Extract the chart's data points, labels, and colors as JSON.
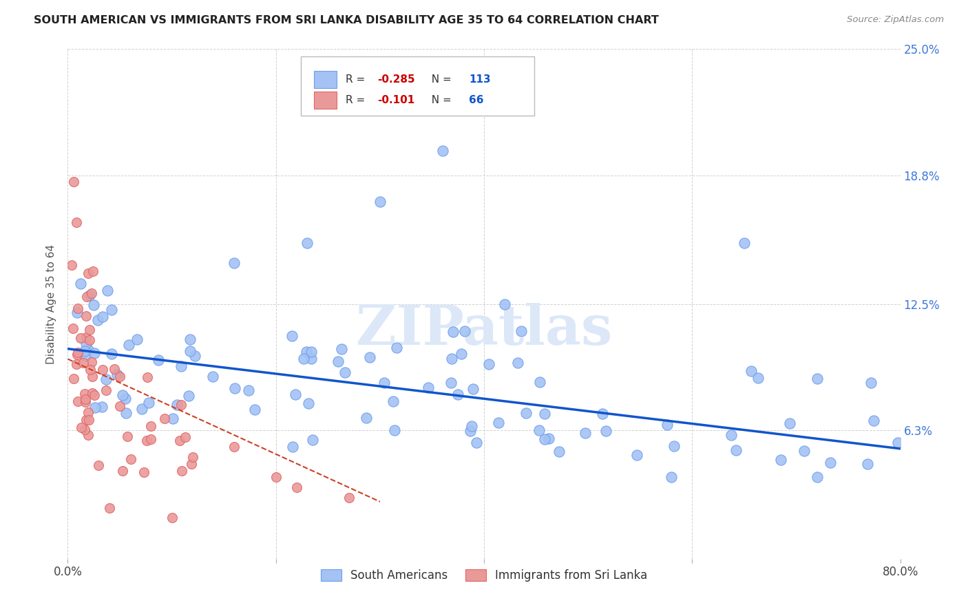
{
  "title": "SOUTH AMERICAN VS IMMIGRANTS FROM SRI LANKA DISABILITY AGE 35 TO 64 CORRELATION CHART",
  "source": "Source: ZipAtlas.com",
  "ylabel": "Disability Age 35 to 64",
  "xmin": 0.0,
  "xmax": 0.8,
  "ymin": 0.0,
  "ymax": 0.25,
  "yticks": [
    0.0,
    0.063,
    0.125,
    0.188,
    0.25
  ],
  "ytick_labels": [
    "",
    "6.3%",
    "12.5%",
    "18.8%",
    "25.0%"
  ],
  "xticks": [
    0.0,
    0.2,
    0.4,
    0.6,
    0.8
  ],
  "xtick_labels": [
    "0.0%",
    "",
    "",
    "",
    "80.0%"
  ],
  "blue_R": -0.285,
  "blue_N": 113,
  "pink_R": -0.101,
  "pink_N": 66,
  "blue_color": "#a4c2f4",
  "pink_color": "#ea9999",
  "blue_edge_color": "#6d9eeb",
  "pink_edge_color": "#e06666",
  "blue_line_color": "#1155cc",
  "pink_line_color": "#cc4125",
  "watermark": "ZIPatlas",
  "watermark_color": "#dce8f8",
  "legend_label_blue": "South Americans",
  "legend_label_pink": "Immigrants from Sri Lanka",
  "blue_line_x0": 0.0,
  "blue_line_x1": 0.8,
  "blue_line_y0": 0.103,
  "blue_line_y1": 0.054,
  "pink_line_x0": 0.0,
  "pink_line_x1": 0.3,
  "pink_line_y0": 0.098,
  "pink_line_y1": 0.028
}
